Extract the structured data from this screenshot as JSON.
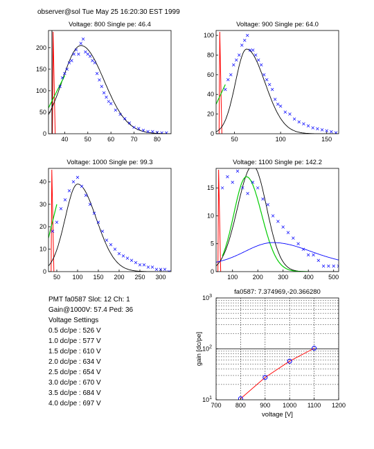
{
  "header": "observer@sol  Tue May 25 16:20:30 EST 1999",
  "info": {
    "line1": "PMT fa0587 Slot: 12 Ch: 1",
    "line2": "Gain@1000V: 57.4 Ped: 36",
    "line3": "Voltage Settings",
    "settings": [
      "0.5 dc/pe : 526 V",
      "1.0 dc/pe : 577 V",
      "1.5 dc/pe : 610 V",
      "2.0 dc/pe : 634 V",
      "2.5 dc/pe : 654 V",
      "3.0 dc/pe : 670 V",
      "3.5 dc/pe : 684 V",
      "4.0 dc/pe : 697 V"
    ]
  },
  "colors": {
    "data": "#0000ff",
    "fit": "#000000",
    "pedestal": "#ff0000",
    "green": "#00cc00",
    "gainfit": "#ff0000"
  },
  "chart_data": [
    {
      "type": "scatter",
      "title": "Voltage: 800 Single pe: 46.4",
      "xlim": [
        33,
        86
      ],
      "ylim": [
        0,
        240
      ],
      "xticks": [
        40,
        50,
        60,
        70,
        80
      ],
      "yticks": [
        0,
        50,
        100,
        150,
        200
      ],
      "peak_x": 47,
      "peak_y": 205,
      "sigma_left": 8,
      "sigma_right": 10,
      "pedestal_x": 35,
      "green_from": [
        33,
        60
      ],
      "green_to": [
        40,
        135
      ],
      "x": [
        38,
        39,
        40,
        41,
        42,
        43,
        44,
        45,
        46,
        47,
        48,
        49,
        50,
        51,
        52,
        53,
        54,
        55,
        56,
        57,
        58,
        59,
        60,
        62,
        64,
        66,
        68,
        70,
        72,
        74,
        76,
        78,
        80,
        82,
        84
      ],
      "y": [
        110,
        130,
        140,
        150,
        165,
        170,
        185,
        195,
        185,
        210,
        220,
        190,
        185,
        180,
        170,
        165,
        140,
        125,
        110,
        95,
        85,
        75,
        70,
        55,
        45,
        35,
        25,
        15,
        12,
        8,
        5,
        5,
        3,
        2,
        2
      ]
    },
    {
      "type": "scatter",
      "title": "Voltage: 900 Single pe: 64.0",
      "xlim": [
        30,
        163
      ],
      "ylim": [
        0,
        105
      ],
      "xticks": [
        50,
        100,
        150
      ],
      "yticks": [
        0,
        20,
        40,
        60,
        80,
        100
      ],
      "peak_x": 63,
      "peak_y": 86,
      "sigma_left": 12,
      "sigma_right": 20,
      "pedestal_x": 34,
      "green_from": [
        30,
        30
      ],
      "green_to": [
        40,
        50
      ],
      "x": [
        40,
        43,
        46,
        49,
        52,
        55,
        58,
        61,
        64,
        67,
        70,
        73,
        76,
        79,
        82,
        85,
        88,
        91,
        94,
        97,
        100,
        105,
        110,
        115,
        120,
        125,
        130,
        135,
        140,
        145,
        150,
        155,
        160
      ],
      "y": [
        45,
        55,
        60,
        70,
        75,
        80,
        90,
        95,
        100,
        85,
        85,
        80,
        75,
        70,
        60,
        55,
        50,
        45,
        35,
        30,
        28,
        22,
        20,
        15,
        12,
        10,
        8,
        6,
        5,
        4,
        3,
        2,
        1
      ]
    },
    {
      "type": "scatter",
      "title": "Voltage: 1000 Single pe: 99.3",
      "xlim": [
        30,
        325
      ],
      "ylim": [
        0,
        46
      ],
      "xticks": [
        50,
        100,
        150,
        200,
        250,
        300
      ],
      "yticks": [
        0,
        10,
        20,
        30,
        40
      ],
      "peak_x": 100,
      "peak_y": 39,
      "sigma_left": 30,
      "sigma_right": 45,
      "pedestal_x": 38,
      "green_from": [
        30,
        15
      ],
      "green_to": [
        50,
        30
      ],
      "x": [
        40,
        50,
        60,
        70,
        80,
        90,
        100,
        110,
        120,
        130,
        140,
        150,
        160,
        170,
        180,
        190,
        200,
        210,
        220,
        230,
        240,
        250,
        260,
        270,
        280,
        290,
        300,
        310,
        320
      ],
      "y": [
        18,
        22,
        28,
        32,
        36,
        40,
        42,
        38,
        34,
        30,
        26,
        22,
        18,
        14,
        12,
        10,
        8,
        7,
        6,
        5,
        4,
        3,
        3,
        2,
        2,
        1,
        1,
        1,
        0
      ]
    },
    {
      "type": "scatter",
      "title": "Voltage: 1100 Single pe: 142.2",
      "xlim": [
        35,
        520
      ],
      "ylim": [
        0,
        18.5
      ],
      "xticks": [
        100,
        200,
        300,
        400,
        500
      ],
      "yticks": [
        0,
        5,
        10,
        15
      ],
      "peak_x": 180,
      "peak_y": 19,
      "sigma_left": 60,
      "sigma_right": 55,
      "pedestal_x": 45,
      "green": {
        "peak_x": 155,
        "peak_y": 17,
        "sigma_left": 50,
        "sigma_right": 60
      },
      "blue_curve": {
        "peak_x": 260,
        "peak_y": 5.2,
        "sigma_left": 110,
        "sigma_right": 150,
        "base": 1.2
      },
      "x": [
        60,
        80,
        100,
        120,
        140,
        160,
        180,
        200,
        220,
        240,
        260,
        280,
        300,
        320,
        340,
        360,
        380,
        400,
        420,
        440,
        460,
        480,
        500,
        520
      ],
      "y": [
        15,
        17,
        16,
        18,
        15,
        14,
        16,
        15,
        13,
        12,
        10,
        9,
        8,
        7,
        6,
        5,
        4,
        3,
        3,
        2,
        1,
        1,
        1,
        1
      ]
    },
    {
      "type": "line",
      "title": "fa0587: 7.374969,-20.366280",
      "xlabel": "voltage [V]",
      "ylabel": "gain [dc/pe]",
      "xlim": [
        700,
        1200
      ],
      "ylim": [
        10,
        1000
      ],
      "yscale": "log",
      "xticks": [
        700,
        800,
        900,
        1000,
        1100,
        1200
      ],
      "yticks": [
        {
          "v": 10,
          "label": "10",
          "sup": "1"
        },
        {
          "v": 100,
          "label": "10",
          "sup": "2"
        },
        {
          "v": 1000,
          "label": "10",
          "sup": "3"
        }
      ],
      "grid": true,
      "x": [
        800,
        900,
        1000,
        1100
      ],
      "y": [
        10.5,
        27.5,
        57.4,
        103
      ]
    }
  ]
}
